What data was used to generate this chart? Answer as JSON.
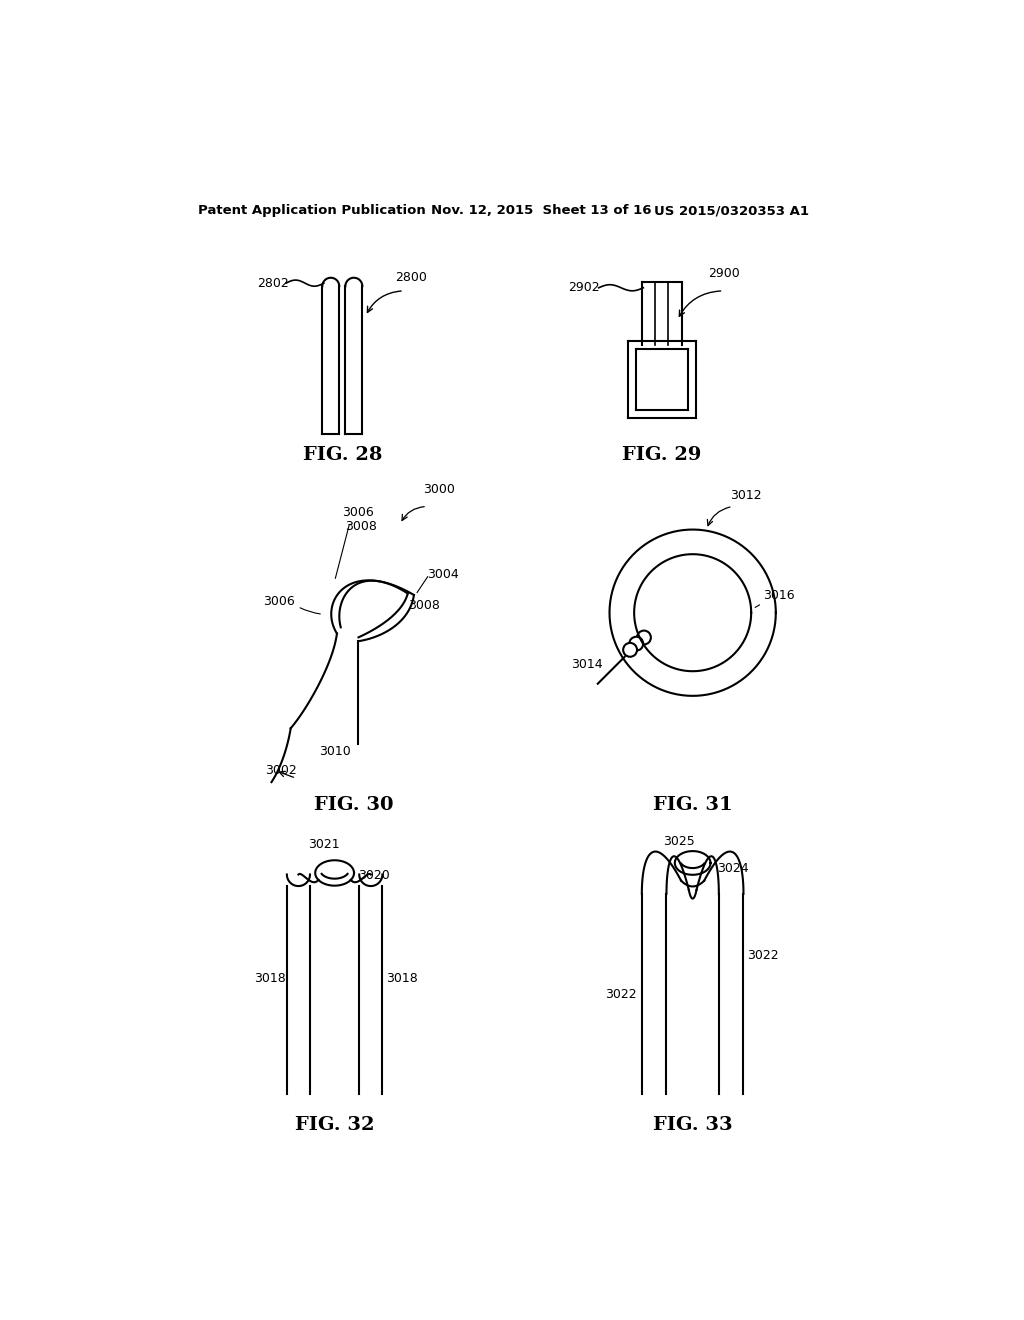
{
  "header_left": "Patent Application Publication",
  "header_mid": "Nov. 12, 2015  Sheet 13 of 16",
  "header_right": "US 2015/0320353 A1",
  "fig28_label": "FIG. 28",
  "fig29_label": "FIG. 29",
  "fig30_label": "FIG. 30",
  "fig31_label": "FIG. 31",
  "fig32_label": "FIG. 32",
  "fig33_label": "FIG. 33",
  "bg_color": "#ffffff",
  "line_color": "#000000",
  "text_color": "#000000",
  "linewidth": 1.5
}
